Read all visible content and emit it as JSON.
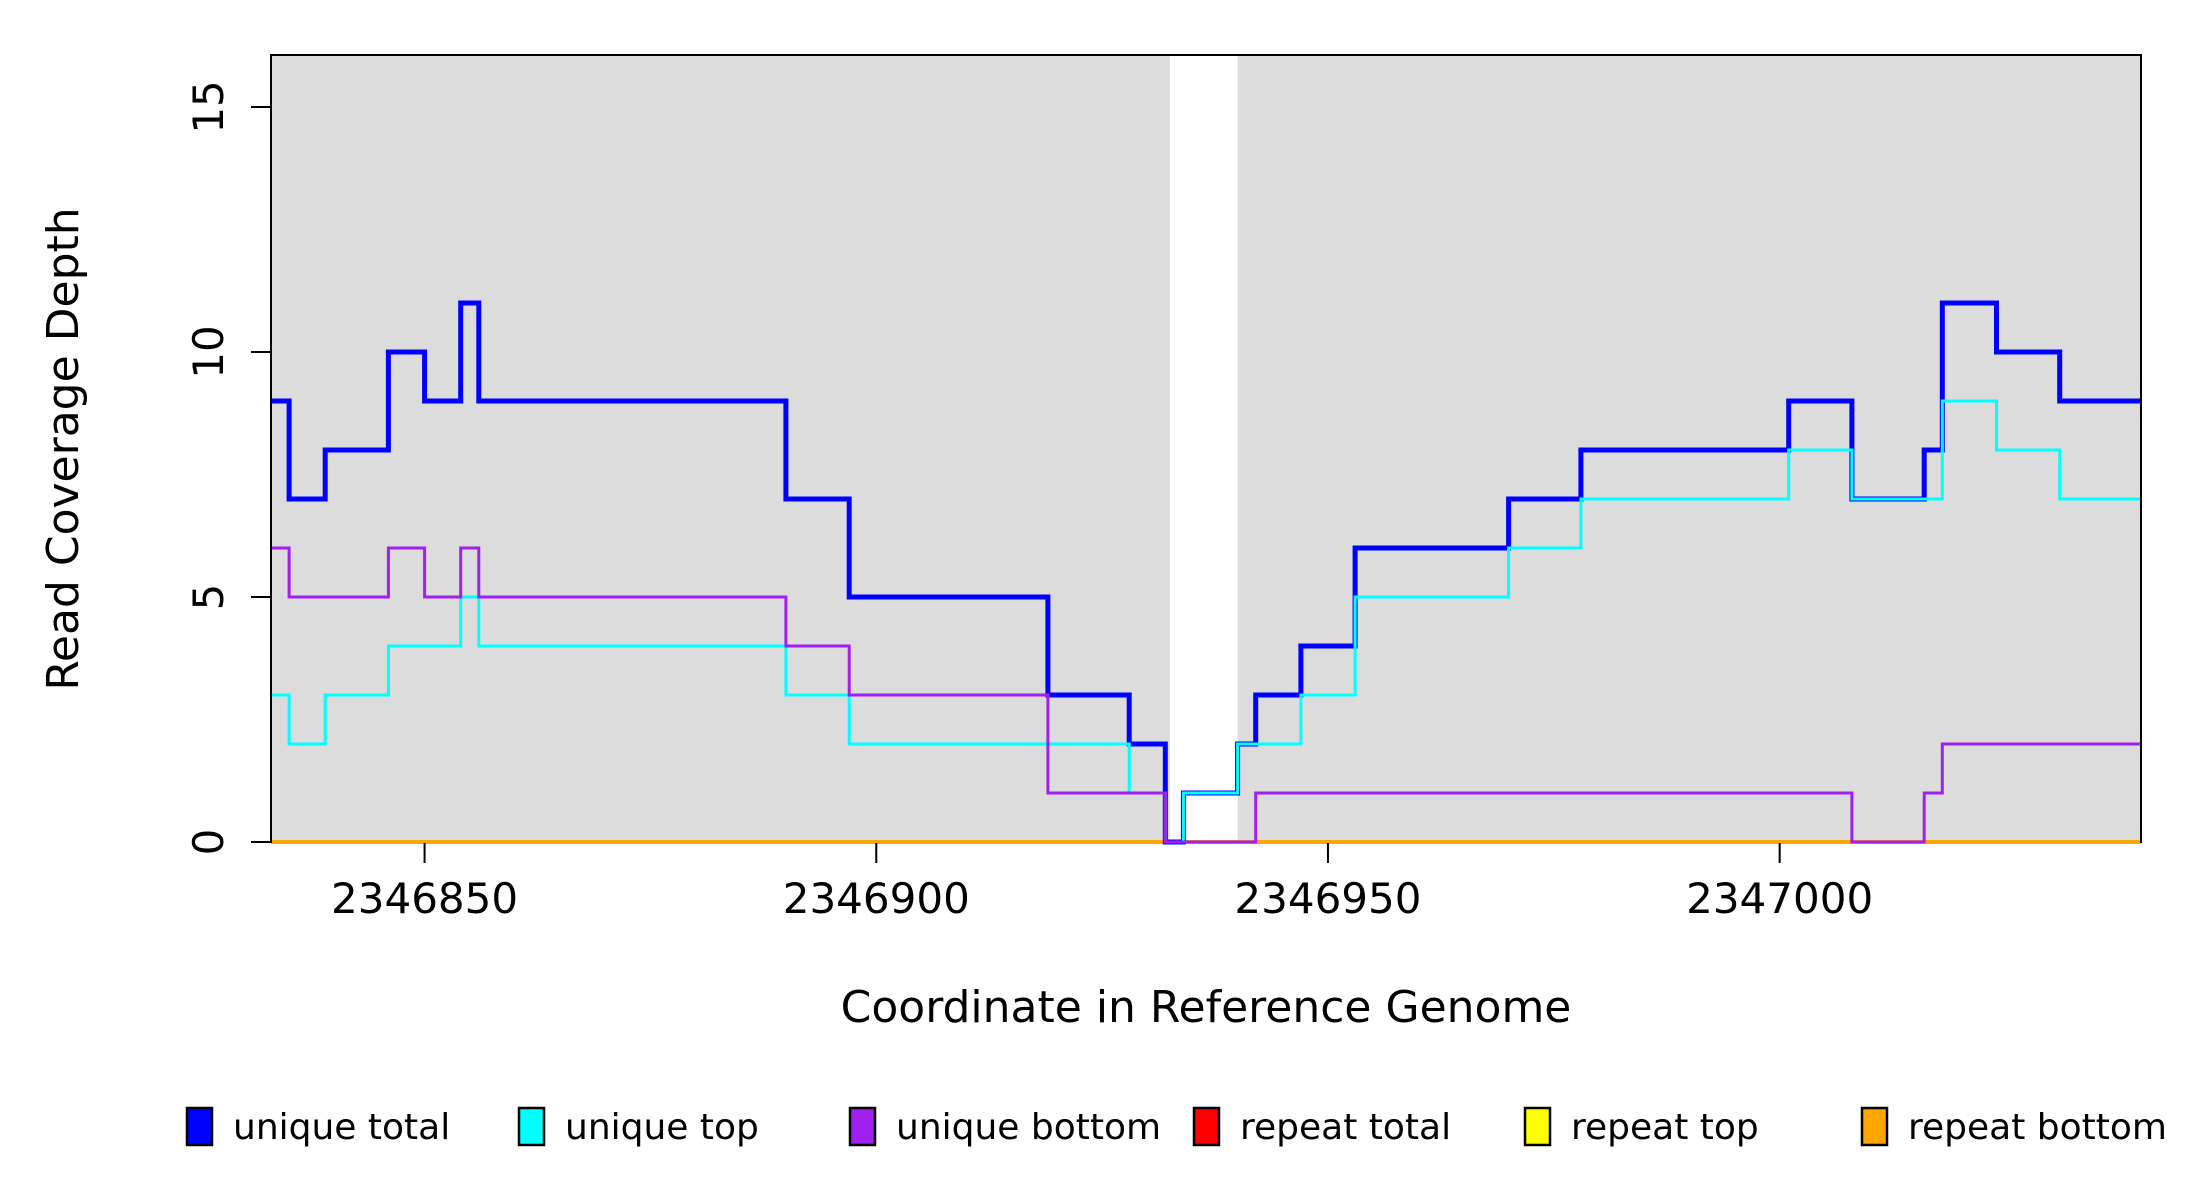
{
  "chart_data": {
    "type": "line",
    "subtype": "step-coverage-plot",
    "xlabel": "Coordinate in Reference Genome",
    "ylabel": "Read Coverage Depth",
    "xlim": [
      2346833,
      2347040
    ],
    "ylim": [
      0,
      16.06
    ],
    "x_ticks": [
      2346850,
      2346900,
      2346950,
      2347000
    ],
    "y_ticks": [
      0,
      5,
      10,
      15
    ],
    "grid": "off",
    "plot_bg_color": "#DCDCDC",
    "gap_band": {
      "x0": 2346932.5,
      "x1": 2346940,
      "color": "#FFFFFF"
    },
    "legend_position": "bottom",
    "series": [
      {
        "name": "unique total",
        "color": "#0000FF",
        "line_width": 5,
        "steps": [
          [
            2346833,
            9
          ],
          [
            2346835,
            7
          ],
          [
            2346839,
            8
          ],
          [
            2346846,
            10
          ],
          [
            2346850,
            9
          ],
          [
            2346854,
            11
          ],
          [
            2346856,
            9
          ],
          [
            2346890,
            7
          ],
          [
            2346897,
            5
          ],
          [
            2346919,
            3
          ],
          [
            2346928,
            2
          ],
          [
            2346932,
            0
          ],
          [
            2346934,
            1
          ],
          [
            2346940,
            2
          ],
          [
            2346942,
            3
          ],
          [
            2346947,
            4
          ],
          [
            2346953,
            6
          ],
          [
            2346970,
            7
          ],
          [
            2346978,
            8
          ],
          [
            2347001,
            9
          ],
          [
            2347008,
            7
          ],
          [
            2347016,
            8
          ],
          [
            2347018,
            11
          ],
          [
            2347024,
            10
          ],
          [
            2347031,
            9
          ]
        ]
      },
      {
        "name": "unique top",
        "color": "#00FFFF",
        "line_width": 3,
        "steps": [
          [
            2346833,
            3
          ],
          [
            2346835,
            2
          ],
          [
            2346839,
            3
          ],
          [
            2346846,
            4
          ],
          [
            2346854,
            5
          ],
          [
            2346856,
            4
          ],
          [
            2346890,
            3
          ],
          [
            2346897,
            2
          ],
          [
            2346928,
            1
          ],
          [
            2346932,
            0
          ],
          [
            2346934,
            1
          ],
          [
            2346940,
            2
          ],
          [
            2346947,
            3
          ],
          [
            2346953,
            5
          ],
          [
            2346970,
            6
          ],
          [
            2346978,
            7
          ],
          [
            2347001,
            8
          ],
          [
            2347008,
            7
          ],
          [
            2347018,
            9
          ],
          [
            2347024,
            8
          ],
          [
            2347031,
            7
          ]
        ]
      },
      {
        "name": "unique bottom",
        "color": "#A020F0",
        "line_width": 3,
        "steps": [
          [
            2346833,
            6
          ],
          [
            2346835,
            5
          ],
          [
            2346846,
            6
          ],
          [
            2346850,
            5
          ],
          [
            2346854,
            6
          ],
          [
            2346856,
            5
          ],
          [
            2346890,
            4
          ],
          [
            2346897,
            3
          ],
          [
            2346919,
            1
          ],
          [
            2346932,
            0
          ],
          [
            2346942,
            1
          ],
          [
            2347008,
            0
          ],
          [
            2347016,
            1
          ],
          [
            2347018,
            2
          ]
        ]
      },
      {
        "name": "repeat total",
        "color": "#FF0000",
        "line_width": 3,
        "steps": [
          [
            2346833,
            0
          ]
        ]
      },
      {
        "name": "repeat top",
        "color": "#FFFF00",
        "line_width": 3,
        "steps": [
          [
            2346833,
            0
          ]
        ]
      },
      {
        "name": "repeat bottom",
        "color": "#FFA500",
        "line_width": 4,
        "steps": [
          [
            2346833,
            0
          ]
        ]
      }
    ],
    "draw_order": [
      "repeat total",
      "repeat top",
      "repeat bottom",
      "unique total",
      "unique top",
      "unique bottom"
    ]
  },
  "legend": {
    "items": [
      {
        "label": "unique total",
        "color": "#0000FF"
      },
      {
        "label": "unique top",
        "color": "#00FFFF"
      },
      {
        "label": "unique bottom",
        "color": "#A020F0"
      },
      {
        "label": "repeat total",
        "color": "#FF0000"
      },
      {
        "label": "repeat top",
        "color": "#FFFF00"
      },
      {
        "label": "repeat bottom",
        "color": "#FFA500"
      }
    ]
  }
}
